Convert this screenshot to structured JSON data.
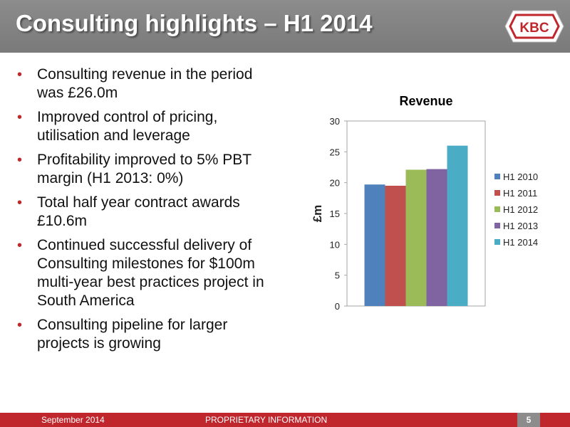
{
  "header": {
    "title": "Consulting highlights – H1 2014",
    "logo_text": "KBC"
  },
  "bullets": [
    "Consulting revenue in the period was £26.0m",
    "Improved control of pricing, utilisation and leverage",
    "Profitability improved to 5% PBT margin (H1 2013: 0%)",
    "Total half year contract awards £10.6m",
    "Continued successful delivery of Consulting milestones for $100m multi-year best practices project in South America",
    "Consulting pipeline for larger projects is growing"
  ],
  "footer": {
    "date": "September 2014",
    "proprietary": "PROPRIETARY INFORMATION",
    "page": "5"
  },
  "colors": {
    "accent_red": "#c0272d",
    "header_grey": "#808080"
  },
  "chart_data": {
    "type": "bar",
    "title": "Revenue",
    "ylabel": "£m",
    "xlabel": "",
    "ylim": [
      0,
      30
    ],
    "yticks": [
      0,
      5,
      10,
      15,
      20,
      25,
      30
    ],
    "grid": false,
    "legend": "right",
    "series": [
      {
        "name": "H1 2010",
        "value": 19.7,
        "color": "#4f81bd"
      },
      {
        "name": "H1 2011",
        "value": 19.5,
        "color": "#c0504d"
      },
      {
        "name": "H1 2012",
        "value": 22.1,
        "color": "#9bbb59"
      },
      {
        "name": "H1 2013",
        "value": 22.2,
        "color": "#8064a2"
      },
      {
        "name": "H1 2014",
        "value": 26.0,
        "color": "#4bacc6"
      }
    ]
  }
}
